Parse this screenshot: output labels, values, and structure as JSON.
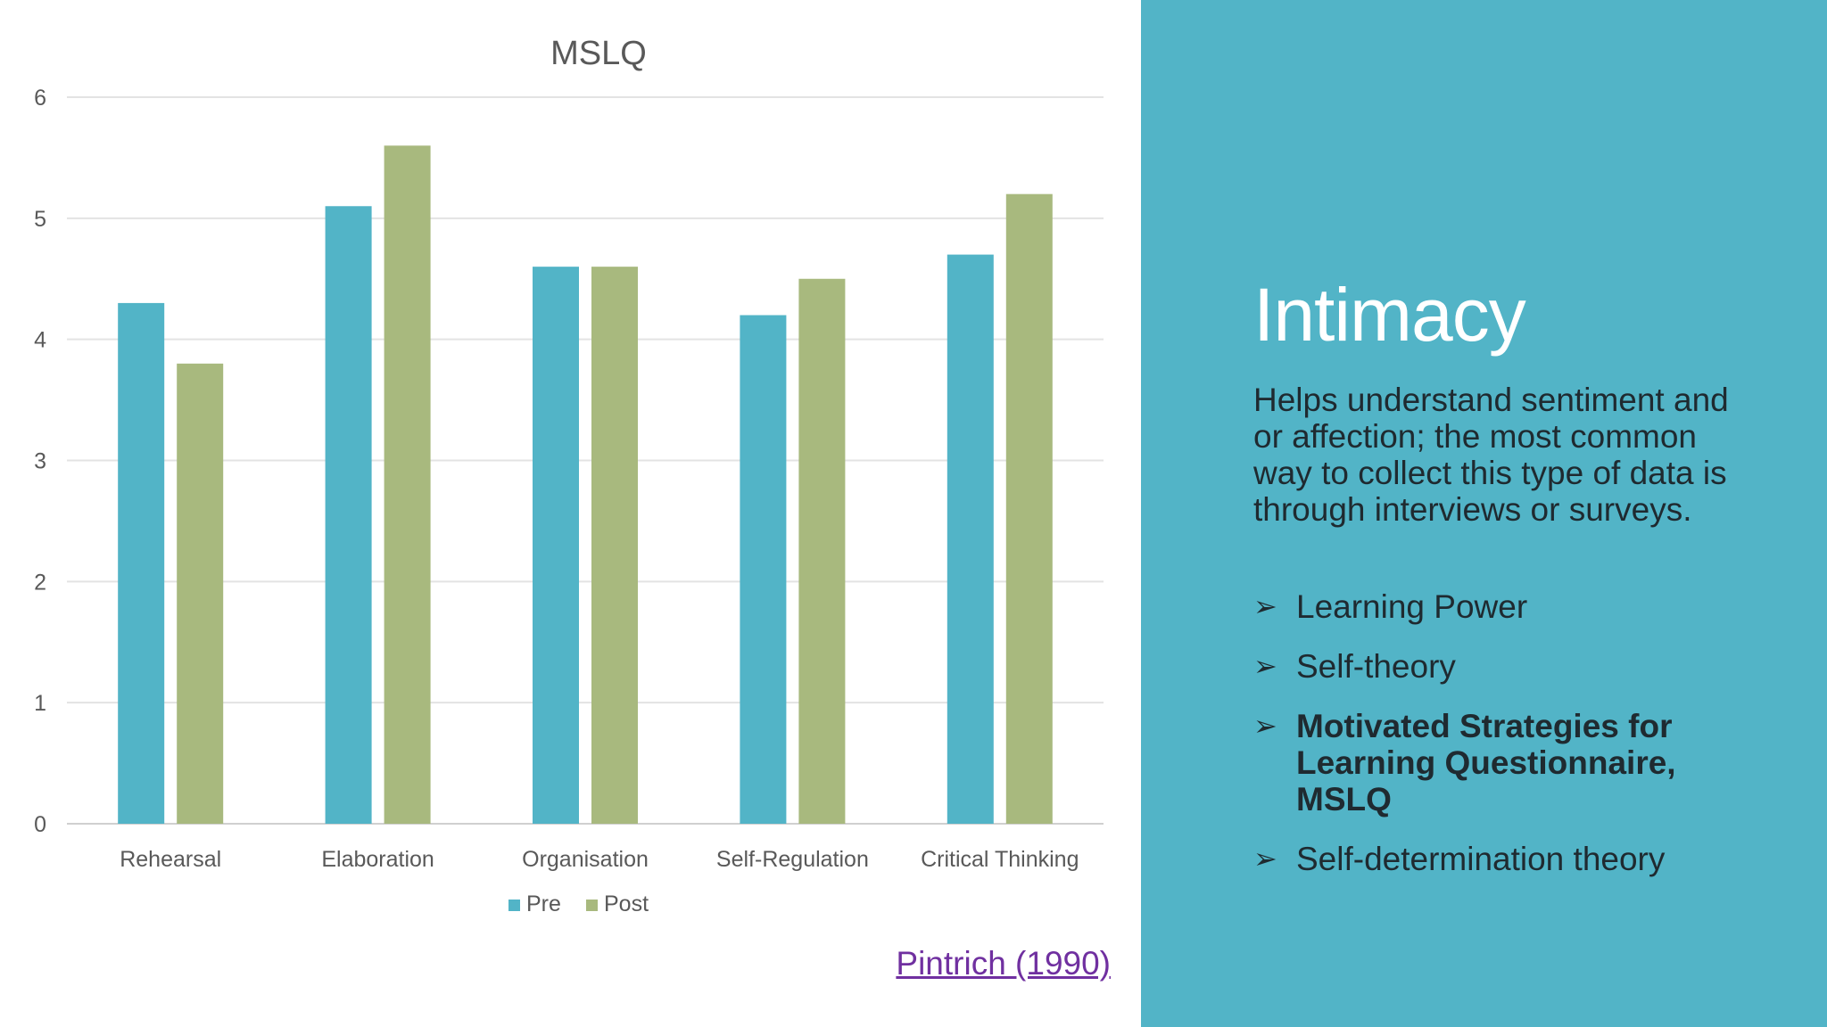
{
  "chart_data": {
    "type": "bar",
    "title": "MSLQ",
    "categories": [
      "Rehearsal",
      "Elaboration",
      "Organisation",
      "Self-Regulation",
      "Critical Thinking"
    ],
    "series": [
      {
        "name": "Pre",
        "values": [
          4.3,
          5.1,
          4.6,
          4.2,
          4.7
        ],
        "color": "#52b4c7"
      },
      {
        "name": "Post",
        "values": [
          3.8,
          5.6,
          4.6,
          4.5,
          5.2
        ],
        "color": "#a8b97e"
      }
    ],
    "xlabel": "",
    "ylabel": "",
    "ylim": [
      0,
      6
    ],
    "yticks": [
      0,
      1,
      2,
      3,
      4,
      5,
      6
    ],
    "grid": true,
    "legend": "bottom-center"
  },
  "source": {
    "label": "Pintrich (1990)"
  },
  "panel": {
    "heading": "Intimacy",
    "description": "Helps understand sentiment and or affection; the most common way to collect this type of data is through interviews or surveys.",
    "bullets": [
      {
        "text": "Learning Power",
        "bold": false
      },
      {
        "text": "Self-theory",
        "bold": false
      },
      {
        "text": "Motivated Strategies for Learning Questionnaire, MSLQ",
        "bold": true
      },
      {
        "text": "Self-determination theory",
        "bold": false
      }
    ],
    "bullet_icon": "arrow-bullet-icon",
    "background_color": "#52b4c7"
  }
}
